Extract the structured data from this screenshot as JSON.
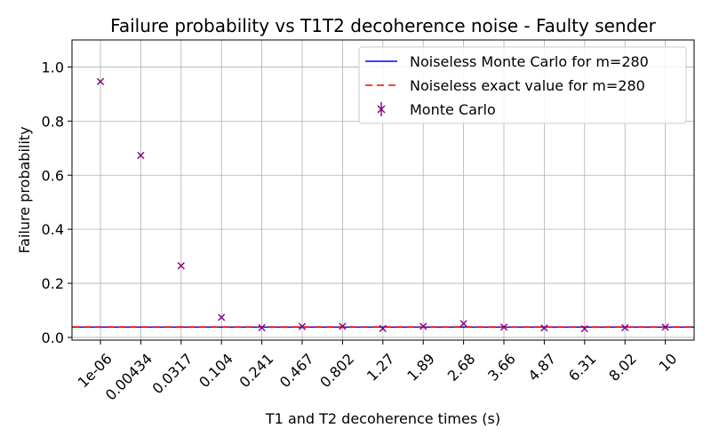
{
  "chart_data": {
    "type": "scatter",
    "title": "Failure probability vs T1T2 decoherence noise - Faulty sender",
    "xlabel": "T1 and T2 decoherence times (s)",
    "ylabel": "Failure probability",
    "categories": [
      "1e-06",
      "0.00434",
      "0.0317",
      "0.104",
      "0.241",
      "0.467",
      "0.802",
      "1.27",
      "1.89",
      "2.68",
      "3.66",
      "4.87",
      "6.31",
      "8.02",
      "10"
    ],
    "ylim": [
      -0.01,
      1.1
    ],
    "yticks": [
      0.0,
      0.2,
      0.4,
      0.6,
      0.8,
      1.0
    ],
    "ytick_labels": [
      "0.0",
      "0.2",
      "0.4",
      "0.6",
      "0.8",
      "1.0"
    ],
    "grid": true,
    "legend_position": "top-right",
    "series": [
      {
        "name": "Monte Carlo",
        "kind": "errorbar-points",
        "marker": "x",
        "color": "#800080",
        "values": [
          0.946,
          0.673,
          0.265,
          0.074,
          0.036,
          0.04,
          0.041,
          0.033,
          0.041,
          0.051,
          0.038,
          0.035,
          0.032,
          0.036,
          0.038
        ]
      },
      {
        "name": "Noiseless Monte Carlo for m=280",
        "kind": "hline",
        "color": "#0000ff",
        "value": 0.038
      },
      {
        "name": "Noiseless exact value for m=280",
        "kind": "hline-dashed",
        "color": "#ff0000",
        "value": 0.039
      }
    ]
  }
}
